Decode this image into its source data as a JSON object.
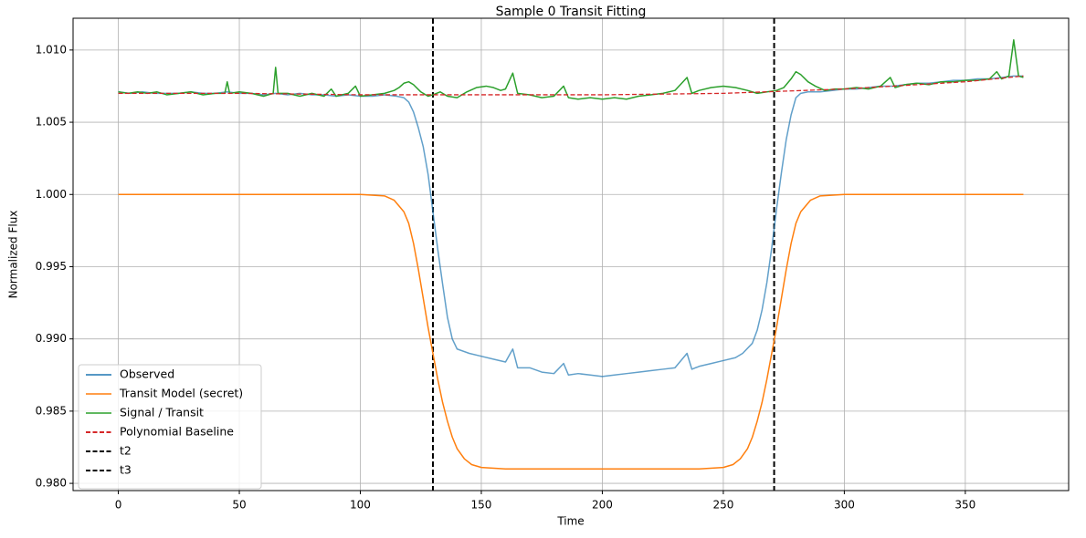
{
  "chart_data": {
    "type": "line",
    "title": "Sample 0 Transit Fitting",
    "xlabel": "Time",
    "ylabel": "Normalized Flux",
    "xlim": [
      -18.7,
      392.7
    ],
    "ylim": [
      0.9795,
      1.0122
    ],
    "xticks": [
      0,
      50,
      100,
      150,
      200,
      250,
      300,
      350
    ],
    "yticks": [
      0.98,
      0.985,
      0.99,
      0.995,
      1.0,
      1.005,
      1.01
    ],
    "xtick_labels": [
      "0",
      "50",
      "100",
      "150",
      "200",
      "250",
      "300",
      "350"
    ],
    "ytick_labels": [
      "0.980",
      "0.985",
      "0.990",
      "0.995",
      "1.000",
      "1.005",
      "1.010"
    ],
    "grid": true,
    "legend_position": "lower-left",
    "vlines": [
      {
        "name": "t2",
        "x": 130,
        "color": "#000000",
        "dash": "dashed"
      },
      {
        "name": "t3",
        "x": 271,
        "color": "#000000",
        "dash": "dashed"
      }
    ],
    "series": [
      {
        "name": "Observed",
        "color": "#1f77b4",
        "opacity": 0.7,
        "style": "solid",
        "points": [
          [
            0,
            1.0071
          ],
          [
            5,
            1.007
          ],
          [
            10,
            1.0071
          ],
          [
            15,
            1.007
          ],
          [
            20,
            1.007
          ],
          [
            25,
            1.007
          ],
          [
            30,
            1.0071
          ],
          [
            35,
            1.007
          ],
          [
            40,
            1.007
          ],
          [
            45,
            1.0071
          ],
          [
            50,
            1.007
          ],
          [
            55,
            1.007
          ],
          [
            60,
            1.0069
          ],
          [
            65,
            1.007
          ],
          [
            70,
            1.0069
          ],
          [
            75,
            1.007
          ],
          [
            80,
            1.0069
          ],
          [
            85,
            1.0069
          ],
          [
            90,
            1.0068
          ],
          [
            95,
            1.0069
          ],
          [
            100,
            1.0068
          ],
          [
            105,
            1.0068
          ],
          [
            110,
            1.0069
          ],
          [
            115,
            1.0068
          ],
          [
            118,
            1.0067
          ],
          [
            120,
            1.0064
          ],
          [
            122,
            1.0057
          ],
          [
            124,
            1.0046
          ],
          [
            126,
            1.0033
          ],
          [
            128,
            1.0014
          ],
          [
            130,
            0.9988
          ],
          [
            132,
            0.9962
          ],
          [
            134,
            0.9938
          ],
          [
            136,
            0.9915
          ],
          [
            138,
            0.99
          ],
          [
            140,
            0.9893
          ],
          [
            145,
            0.989
          ],
          [
            150,
            0.9888
          ],
          [
            155,
            0.9886
          ],
          [
            160,
            0.9884
          ],
          [
            163,
            0.9893
          ],
          [
            165,
            0.988
          ],
          [
            170,
            0.988
          ],
          [
            175,
            0.9877
          ],
          [
            180,
            0.9876
          ],
          [
            184,
            0.9883
          ],
          [
            186,
            0.9875
          ],
          [
            190,
            0.9876
          ],
          [
            195,
            0.9875
          ],
          [
            200,
            0.9874
          ],
          [
            205,
            0.9875
          ],
          [
            210,
            0.9876
          ],
          [
            215,
            0.9877
          ],
          [
            220,
            0.9878
          ],
          [
            225,
            0.9879
          ],
          [
            230,
            0.988
          ],
          [
            235,
            0.989
          ],
          [
            237,
            0.9879
          ],
          [
            240,
            0.9881
          ],
          [
            245,
            0.9883
          ],
          [
            250,
            0.9885
          ],
          [
            255,
            0.9887
          ],
          [
            258,
            0.989
          ],
          [
            262,
            0.9897
          ],
          [
            264,
            0.9906
          ],
          [
            266,
            0.992
          ],
          [
            268,
            0.9939
          ],
          [
            270,
            0.9963
          ],
          [
            272,
            0.999
          ],
          [
            274,
            1.0015
          ],
          [
            276,
            1.0038
          ],
          [
            278,
            1.0055
          ],
          [
            280,
            1.0067
          ],
          [
            282,
            1.007
          ],
          [
            285,
            1.0071
          ],
          [
            290,
            1.0071
          ],
          [
            295,
            1.0072
          ],
          [
            300,
            1.0073
          ],
          [
            305,
            1.0073
          ],
          [
            310,
            1.0074
          ],
          [
            315,
            1.0075
          ],
          [
            320,
            1.0075
          ],
          [
            325,
            1.0076
          ],
          [
            330,
            1.0077
          ],
          [
            335,
            1.0077
          ],
          [
            340,
            1.0078
          ],
          [
            345,
            1.0079
          ],
          [
            350,
            1.0079
          ],
          [
            355,
            1.008
          ],
          [
            360,
            1.008
          ],
          [
            365,
            1.0081
          ],
          [
            370,
            1.0082
          ],
          [
            374,
            1.0082
          ]
        ]
      },
      {
        "name": "Transit Model (secret)",
        "color": "#ff7f0e",
        "opacity": 1,
        "style": "solid",
        "points": [
          [
            0,
            1.0
          ],
          [
            50,
            1.0
          ],
          [
            100,
            1.0
          ],
          [
            110,
            0.9999
          ],
          [
            114,
            0.9996
          ],
          [
            118,
            0.9988
          ],
          [
            120,
            0.998
          ],
          [
            122,
            0.9966
          ],
          [
            124,
            0.9948
          ],
          [
            126,
            0.9928
          ],
          [
            128,
            0.9908
          ],
          [
            130,
            0.989
          ],
          [
            132,
            0.9872
          ],
          [
            134,
            0.9856
          ],
          [
            136,
            0.9843
          ],
          [
            138,
            0.9832
          ],
          [
            140,
            0.9824
          ],
          [
            143,
            0.9817
          ],
          [
            146,
            0.9813
          ],
          [
            150,
            0.9811
          ],
          [
            160,
            0.981
          ],
          [
            200,
            0.981
          ],
          [
            240,
            0.981
          ],
          [
            250,
            0.9811
          ],
          [
            254,
            0.9813
          ],
          [
            257,
            0.9817
          ],
          [
            260,
            0.9824
          ],
          [
            262,
            0.9832
          ],
          [
            264,
            0.9843
          ],
          [
            266,
            0.9856
          ],
          [
            268,
            0.9872
          ],
          [
            270,
            0.989
          ],
          [
            272,
            0.9908
          ],
          [
            274,
            0.9928
          ],
          [
            276,
            0.9948
          ],
          [
            278,
            0.9966
          ],
          [
            280,
            0.998
          ],
          [
            282,
            0.9988
          ],
          [
            286,
            0.9996
          ],
          [
            290,
            0.9999
          ],
          [
            300,
            1.0
          ],
          [
            350,
            1.0
          ],
          [
            374,
            1.0
          ]
        ]
      },
      {
        "name": "Signal / Transit",
        "color": "#2ca02c",
        "opacity": 1,
        "style": "solid",
        "points": [
          [
            0,
            1.0071
          ],
          [
            4,
            1.007
          ],
          [
            8,
            1.0071
          ],
          [
            12,
            1.007
          ],
          [
            16,
            1.0071
          ],
          [
            20,
            1.0069
          ],
          [
            25,
            1.007
          ],
          [
            30,
            1.0071
          ],
          [
            35,
            1.0069
          ],
          [
            40,
            1.007
          ],
          [
            44,
            1.007
          ],
          [
            45,
            1.0078
          ],
          [
            46,
            1.007
          ],
          [
            50,
            1.0071
          ],
          [
            55,
            1.007
          ],
          [
            60,
            1.0068
          ],
          [
            64,
            1.007
          ],
          [
            65,
            1.0088
          ],
          [
            66,
            1.007
          ],
          [
            70,
            1.007
          ],
          [
            75,
            1.0068
          ],
          [
            80,
            1.007
          ],
          [
            85,
            1.0068
          ],
          [
            88,
            1.0073
          ],
          [
            90,
            1.0068
          ],
          [
            95,
            1.007
          ],
          [
            98,
            1.0075
          ],
          [
            100,
            1.0068
          ],
          [
            105,
            1.0069
          ],
          [
            110,
            1.007
          ],
          [
            114,
            1.0072
          ],
          [
            116,
            1.0074
          ],
          [
            118,
            1.0077
          ],
          [
            120,
            1.0078
          ],
          [
            122,
            1.0076
          ],
          [
            125,
            1.0071
          ],
          [
            128,
            1.0068
          ],
          [
            130,
            1.0069
          ],
          [
            133,
            1.0071
          ],
          [
            136,
            1.0068
          ],
          [
            140,
            1.0067
          ],
          [
            144,
            1.0071
          ],
          [
            148,
            1.0074
          ],
          [
            152,
            1.0075
          ],
          [
            155,
            1.0074
          ],
          [
            158,
            1.0072
          ],
          [
            160,
            1.0073
          ],
          [
            163,
            1.0084
          ],
          [
            165,
            1.007
          ],
          [
            170,
            1.0069
          ],
          [
            175,
            1.0067
          ],
          [
            180,
            1.0068
          ],
          [
            184,
            1.0075
          ],
          [
            186,
            1.0067
          ],
          [
            190,
            1.0066
          ],
          [
            195,
            1.0067
          ],
          [
            200,
            1.0066
          ],
          [
            205,
            1.0067
          ],
          [
            210,
            1.0066
          ],
          [
            215,
            1.0068
          ],
          [
            220,
            1.0069
          ],
          [
            225,
            1.007
          ],
          [
            230,
            1.0072
          ],
          [
            235,
            1.0081
          ],
          [
            237,
            1.007
          ],
          [
            240,
            1.0072
          ],
          [
            245,
            1.0074
          ],
          [
            250,
            1.0075
          ],
          [
            255,
            1.0074
          ],
          [
            260,
            1.0072
          ],
          [
            264,
            1.007
          ],
          [
            268,
            1.0071
          ],
          [
            272,
            1.0072
          ],
          [
            275,
            1.0074
          ],
          [
            278,
            1.008
          ],
          [
            280,
            1.0085
          ],
          [
            282,
            1.0083
          ],
          [
            285,
            1.0078
          ],
          [
            288,
            1.0075
          ],
          [
            292,
            1.0072
          ],
          [
            296,
            1.0073
          ],
          [
            300,
            1.0073
          ],
          [
            305,
            1.0074
          ],
          [
            310,
            1.0073
          ],
          [
            315,
            1.0075
          ],
          [
            319,
            1.0081
          ],
          [
            321,
            1.0074
          ],
          [
            325,
            1.0076
          ],
          [
            330,
            1.0077
          ],
          [
            335,
            1.0076
          ],
          [
            340,
            1.0078
          ],
          [
            345,
            1.0078
          ],
          [
            350,
            1.0079
          ],
          [
            355,
            1.0079
          ],
          [
            360,
            1.008
          ],
          [
            363,
            1.0085
          ],
          [
            365,
            1.008
          ],
          [
            368,
            1.0082
          ],
          [
            370,
            1.0107
          ],
          [
            372,
            1.0082
          ],
          [
            374,
            1.0081
          ]
        ]
      },
      {
        "name": "Polynomial Baseline",
        "color": "#d62728",
        "opacity": 1,
        "style": "dashed",
        "points": [
          [
            0,
            1.007
          ],
          [
            50,
            1.007
          ],
          [
            100,
            1.0069
          ],
          [
            150,
            1.0069
          ],
          [
            200,
            1.0069
          ],
          [
            250,
            1.007
          ],
          [
            300,
            1.0073
          ],
          [
            350,
            1.0078
          ],
          [
            374,
            1.0082
          ]
        ]
      }
    ],
    "legend": [
      {
        "label": "Observed",
        "color": "#1f77b4",
        "style": "solid"
      },
      {
        "label": "Transit Model (secret)",
        "color": "#ff7f0e",
        "style": "solid"
      },
      {
        "label": "Signal / Transit",
        "color": "#2ca02c",
        "style": "solid"
      },
      {
        "label": "Polynomial Baseline",
        "color": "#d62728",
        "style": "dashed"
      },
      {
        "label": "t2",
        "color": "#000000",
        "style": "dashed"
      },
      {
        "label": "t3",
        "color": "#000000",
        "style": "dashed"
      }
    ]
  }
}
